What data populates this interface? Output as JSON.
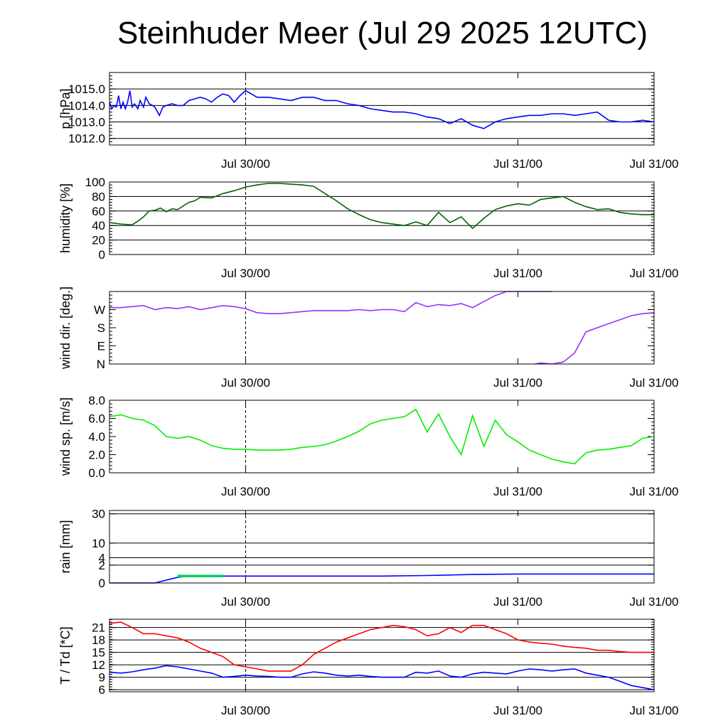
{
  "title": "Steinhuder Meer (Jul 29 2025 12UTC)",
  "chart_data": [
    {
      "type": "line",
      "ylabel": "p [hPa]",
      "x_ticks": [
        "Jul 30/00",
        "Jul 31/00"
      ],
      "x_hours_range": [
        -12,
        36
      ],
      "ylim": [
        1011.6,
        1016.0
      ],
      "yticks": [
        1012.0,
        1013.0,
        1014.0,
        1015.0
      ],
      "ytick_labels": [
        "1012.0",
        "1013.0",
        "1014.0",
        "1015.0"
      ],
      "grid": true,
      "series": [
        {
          "color": "#0000ff",
          "x": [
            -12,
            -11.8,
            -11.6,
            -11.4,
            -11.2,
            -11,
            -10.8,
            -10.6,
            -10.4,
            -10.2,
            -10,
            -9.8,
            -9.5,
            -9.3,
            -9,
            -8.8,
            -8.5,
            -8.2,
            -8,
            -7.6,
            -7.3,
            -7,
            -6.5,
            -6,
            -5.5,
            -5,
            -4.5,
            -4,
            -3.5,
            -3,
            -2.5,
            -2,
            -1.5,
            -1,
            -0.5,
            0,
            0.5,
            1,
            2,
            3,
            4,
            5,
            6,
            7,
            8,
            9,
            10,
            11,
            12,
            13,
            14,
            15,
            16,
            17,
            18,
            19,
            20,
            21,
            22,
            23,
            24,
            25,
            26,
            27,
            28,
            29,
            30,
            31,
            32,
            33,
            34,
            35,
            36
          ],
          "y": [
            1014.2,
            1013.8,
            1014.0,
            1013.9,
            1014.6,
            1013.8,
            1014.2,
            1013.8,
            1014.2,
            1014.9,
            1013.9,
            1014.1,
            1013.8,
            1014.3,
            1013.9,
            1014.5,
            1014.1,
            1014.0,
            1013.9,
            1013.4,
            1013.9,
            1014.0,
            1014.1,
            1014.0,
            1014.0,
            1014.3,
            1014.4,
            1014.5,
            1014.4,
            1014.2,
            1014.5,
            1014.7,
            1014.6,
            1014.2,
            1014.6,
            1014.9,
            1014.7,
            1014.5,
            1014.5,
            1014.4,
            1014.3,
            1014.5,
            1014.5,
            1014.3,
            1014.3,
            1014.1,
            1014.0,
            1013.8,
            1013.7,
            1013.6,
            1013.6,
            1013.5,
            1013.3,
            1013.2,
            1012.9,
            1013.2,
            1012.8,
            1012.6,
            1013.0,
            1013.2,
            1013.3,
            1013.4,
            1013.4,
            1013.5,
            1013.5,
            1013.4,
            1013.5,
            1013.6,
            1013.1,
            1013.0,
            1013.0,
            1013.1,
            1013.0
          ]
        }
      ]
    },
    {
      "type": "line",
      "ylabel": "humidity [%]",
      "x_ticks": [
        "Jul 30/00",
        "Jul 31/00"
      ],
      "x_hours_range": [
        -12,
        36
      ],
      "ylim": [
        0,
        100
      ],
      "yticks": [
        0,
        20,
        40,
        60,
        80,
        100
      ],
      "ytick_labels": [
        "0",
        "20",
        "40",
        "60",
        "80",
        "100"
      ],
      "grid": true,
      "series": [
        {
          "color": "#006400",
          "x": [
            -12,
            -11,
            -10,
            -9.5,
            -9,
            -8.5,
            -8,
            -7.5,
            -7,
            -6.5,
            -6,
            -5,
            -4.5,
            -4,
            -3,
            -2,
            -1,
            0,
            1,
            2,
            3,
            4,
            5,
            6,
            7,
            8,
            9,
            10,
            11,
            12,
            13,
            14,
            15,
            16,
            17,
            18,
            19,
            20,
            21,
            22,
            23,
            24,
            25,
            26,
            27,
            28,
            29,
            30,
            31,
            32,
            33,
            34,
            35,
            36
          ],
          "y": [
            44,
            42,
            41,
            46,
            52,
            60,
            61,
            64,
            59,
            63,
            62,
            72,
            74,
            79,
            78,
            84,
            88,
            93,
            96,
            98,
            98,
            97,
            96,
            94,
            84,
            74,
            63,
            55,
            48,
            44,
            42,
            40,
            45,
            40,
            58,
            44,
            52,
            36,
            50,
            62,
            67,
            70,
            68,
            76,
            78,
            80,
            72,
            66,
            62,
            63,
            58,
            56,
            55,
            55
          ]
        }
      ]
    },
    {
      "type": "line",
      "ylabel": "wind dir. [deg.]",
      "x_ticks": [
        "Jul 30/00",
        "Jul 31/00"
      ],
      "x_hours_range": [
        -12,
        36
      ],
      "ylim": [
        0,
        360
      ],
      "yticks": [
        0,
        90,
        180,
        270
      ],
      "ytick_labels": [
        "N",
        "E",
        "S",
        "W"
      ],
      "grid": false,
      "series": [
        {
          "color": "#9b30ff",
          "segments": [
            {
              "x": [
                -12,
                -11,
                -10,
                -9,
                -8,
                -7,
                -6,
                -5,
                -4,
                -3,
                -2,
                -1,
                0,
                1,
                2,
                3,
                4,
                5,
                6,
                7,
                8,
                9,
                10,
                11,
                12,
                13,
                14,
                15,
                16,
                17,
                18,
                19,
                20,
                21,
                22,
                23,
                24,
                25,
                26,
                26.5,
                27
              ],
              "y": [
                280,
                280,
                285,
                290,
                270,
                280,
                275,
                285,
                270,
                280,
                290,
                285,
                275,
                255,
                250,
                250,
                255,
                260,
                265,
                265,
                265,
                265,
                270,
                265,
                270,
                270,
                260,
                305,
                285,
                295,
                290,
                300,
                280,
                310,
                340,
                360,
                360,
                360,
                360,
                360,
                360
              ]
            },
            {
              "x": [
                25.5,
                26,
                27,
                28,
                29,
                30,
                31,
                32,
                33,
                34,
                35,
                36
              ],
              "y": [
                0,
                5,
                0,
                10,
                55,
                160,
                180,
                200,
                220,
                240,
                250,
                255
              ]
            }
          ]
        }
      ]
    },
    {
      "type": "line",
      "ylabel": "wind sp. [m/s]",
      "x_ticks": [
        "Jul 30/00",
        "Jul 31/00"
      ],
      "x_hours_range": [
        -12,
        36
      ],
      "ylim": [
        0.0,
        8.0
      ],
      "yticks": [
        0.0,
        2.0,
        4.0,
        6.0,
        8.0
      ],
      "ytick_labels": [
        "0.0",
        "2.0",
        "4.0",
        "6.0",
        "8.0"
      ],
      "grid": false,
      "series": [
        {
          "color": "#00ee00",
          "x": [
            -12,
            -11,
            -10,
            -9,
            -8,
            -7,
            -6,
            -5,
            -4,
            -3,
            -2,
            -1,
            0,
            1,
            2,
            3,
            4,
            5,
            6,
            7,
            8,
            9,
            10,
            11,
            12,
            13,
            14,
            15,
            16,
            17,
            18,
            19,
            20,
            21,
            22,
            23,
            24,
            25,
            26,
            27,
            28,
            29,
            30,
            31,
            32,
            33,
            34,
            35,
            36
          ],
          "y": [
            6.2,
            6.4,
            6.0,
            5.8,
            5.2,
            4.0,
            3.8,
            4.0,
            3.6,
            3.0,
            2.7,
            2.6,
            2.6,
            2.5,
            2.5,
            2.5,
            2.6,
            2.8,
            2.9,
            3.1,
            3.5,
            4.0,
            4.6,
            5.4,
            5.8,
            6.0,
            6.2,
            7.0,
            4.5,
            6.5,
            4.0,
            2.0,
            6.3,
            2.9,
            5.8,
            4.2,
            3.4,
            2.5,
            2.0,
            1.5,
            1.2,
            1.0,
            2.2,
            2.5,
            2.6,
            2.8,
            3.0,
            3.8,
            4.0
          ]
        }
      ]
    },
    {
      "type": "area",
      "ylabel": "rain [mm]",
      "x_ticks": [
        "Jul 30/00",
        "Jul 31/00"
      ],
      "x_hours_range": [
        -12,
        36
      ],
      "yticks": [
        0,
        2,
        4,
        10,
        30
      ],
      "ytick_labels": [
        "0",
        "2",
        "4",
        "10",
        "30"
      ],
      "grid": true,
      "series": [
        {
          "color": "#0000ff",
          "x": [
            -12,
            -8,
            -6,
            -5,
            -4,
            0,
            12,
            16,
            18,
            20,
            24,
            30,
            36
          ],
          "y": [
            0,
            0,
            0.2,
            0.3,
            0.3,
            0.3,
            0.3,
            0.35,
            0.4,
            0.45,
            0.5,
            0.5,
            0.5
          ]
        },
        {
          "color": "#00cc66",
          "x": [
            -6,
            -5,
            -2
          ],
          "y": [
            0.3,
            0.3,
            0.3
          ]
        }
      ]
    },
    {
      "type": "line",
      "ylabel": "T / Td [*C]",
      "x_ticks": [
        "Jul 30/00",
        "Jul 31/00"
      ],
      "x_hours_range": [
        -12,
        36
      ],
      "ylim": [
        5.5,
        23
      ],
      "yticks": [
        6,
        9,
        12,
        15,
        18,
        21
      ],
      "ytick_labels": [
        "6",
        "9",
        "12",
        "15",
        "18",
        "21"
      ],
      "grid": true,
      "series": [
        {
          "color": "#ff0000",
          "x": [
            -12,
            -11,
            -10,
            -9,
            -8,
            -7,
            -6,
            -5,
            -4,
            -3,
            -2,
            -1,
            0,
            1,
            2,
            3,
            4,
            5,
            6,
            7,
            8,
            9,
            10,
            11,
            12,
            13,
            14,
            15,
            16,
            17,
            18,
            19,
            20,
            21,
            22,
            23,
            24,
            25,
            26,
            27,
            28,
            29,
            30,
            31,
            32,
            33,
            34,
            35,
            36
          ],
          "y": [
            22.0,
            22.3,
            21.0,
            19.5,
            19.5,
            19.0,
            18.5,
            17.5,
            16.0,
            15.0,
            14.0,
            12.0,
            11.5,
            11.0,
            10.5,
            10.5,
            10.5,
            12.0,
            14.5,
            16.0,
            17.5,
            18.5,
            19.5,
            20.5,
            21.0,
            21.5,
            21.2,
            20.5,
            19.0,
            19.5,
            21.0,
            19.8,
            21.5,
            21.5,
            20.5,
            19.5,
            18.0,
            17.5,
            17.2,
            17.0,
            16.5,
            16.2,
            16.0,
            15.5,
            15.5,
            15.2,
            15.0,
            15.0,
            15.0
          ]
        },
        {
          "color": "#0000ff",
          "x": [
            -12,
            -11,
            -10,
            -9,
            -8,
            -7,
            -6,
            -5,
            -4,
            -3,
            -2,
            -1,
            0,
            1,
            2,
            3,
            4,
            5,
            6,
            7,
            8,
            9,
            10,
            11,
            12,
            13,
            14,
            15,
            16,
            17,
            18,
            19,
            20,
            21,
            22,
            23,
            24,
            25,
            26,
            27,
            28,
            29,
            30,
            31,
            32,
            33,
            34,
            35,
            36
          ],
          "y": [
            10.2,
            10.0,
            10.3,
            10.8,
            11.2,
            11.8,
            11.5,
            11.0,
            10.5,
            10.0,
            9.0,
            9.2,
            9.5,
            9.3,
            9.2,
            9.0,
            9.0,
            9.8,
            10.3,
            10.0,
            9.5,
            9.3,
            9.5,
            9.2,
            9.0,
            9.0,
            9.0,
            10.2,
            10.0,
            10.5,
            9.3,
            9.0,
            9.8,
            10.2,
            10.0,
            9.8,
            10.5,
            11.0,
            10.8,
            10.5,
            10.8,
            11.0,
            10.0,
            9.5,
            9.0,
            8.0,
            7.0,
            6.5,
            6.0
          ]
        }
      ]
    }
  ]
}
